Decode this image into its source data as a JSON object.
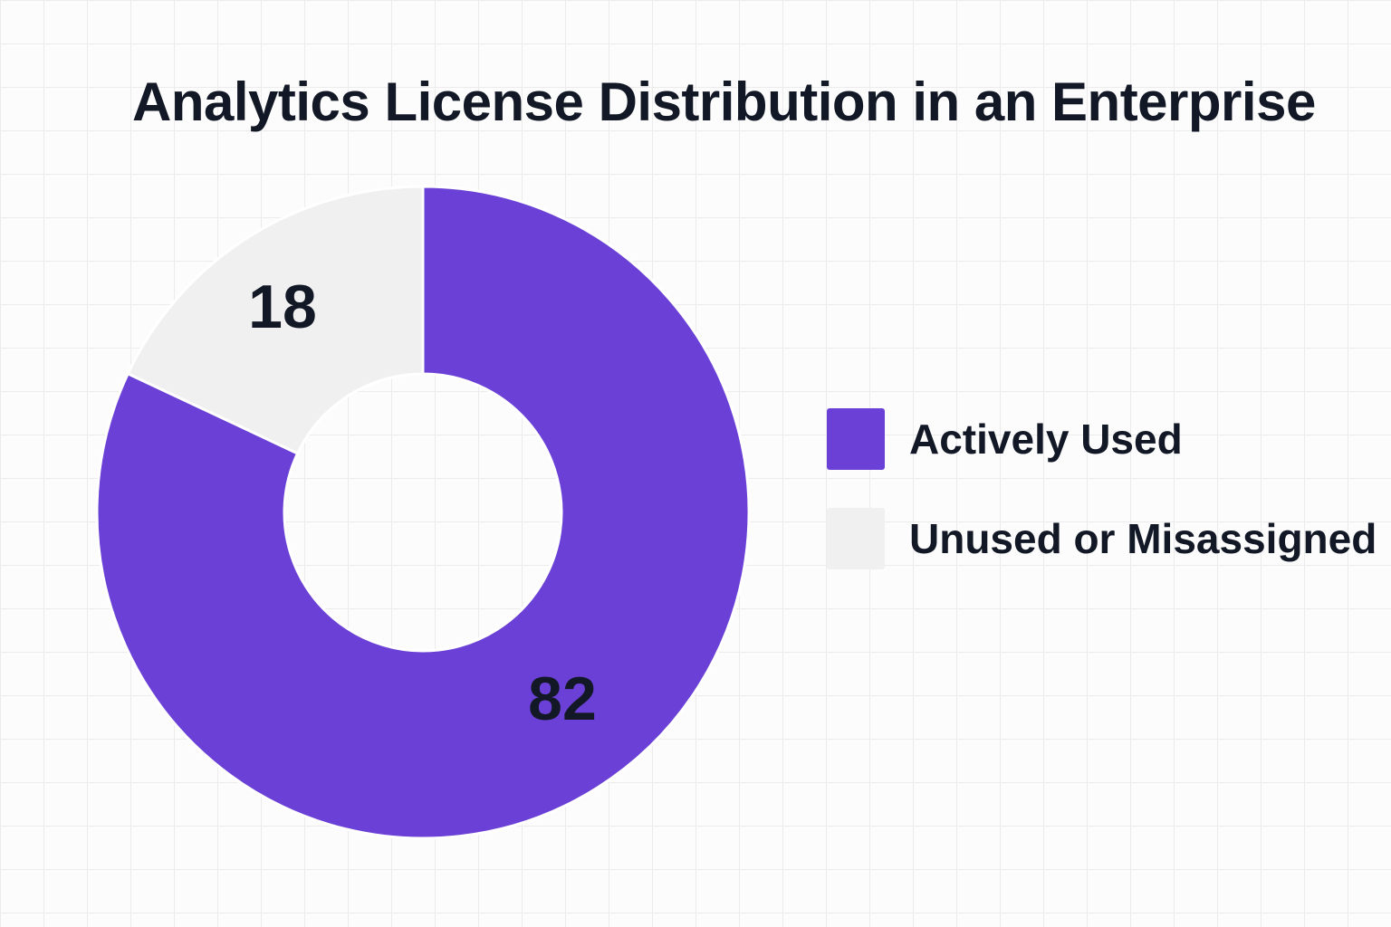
{
  "chart_data": {
    "type": "pie",
    "title": "Analytics License Distribution in an Enterprise",
    "donut": true,
    "categories": [
      "Actively Used",
      "Unused or Misassigned"
    ],
    "values": [
      82,
      18
    ],
    "colors": [
      "#6b40d6",
      "#f0f0f0"
    ],
    "data_labels": [
      "82",
      "18"
    ],
    "legend_position": "right"
  }
}
